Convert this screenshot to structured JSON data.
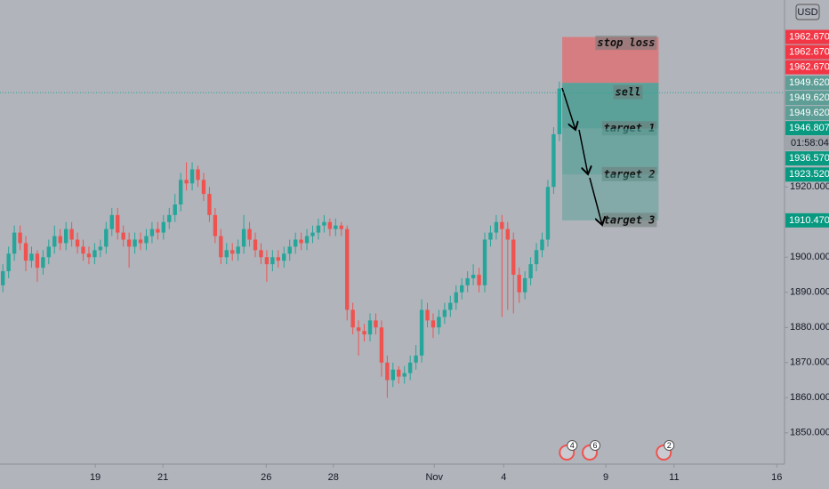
{
  "chart_data": {
    "type": "candlestick",
    "currency": "USD",
    "up_color": "#26a69a",
    "down_color": "#ef5350",
    "xlim": [
      -0.5,
      144
    ],
    "xticks": [
      {
        "value": 16.1,
        "label": "19"
      },
      {
        "value": 27.9,
        "label": "21"
      },
      {
        "value": 45.9,
        "label": "26"
      },
      {
        "value": 57.6,
        "label": "28"
      },
      {
        "value": 75.2,
        "label": "Nov"
      },
      {
        "value": 87.3,
        "label": "4"
      },
      {
        "value": 105.1,
        "label": "9"
      },
      {
        "value": 117,
        "label": "11"
      },
      {
        "value": 134.9,
        "label": "16"
      }
    ],
    "ylim": [
      1841.1,
      1973.2
    ],
    "yticks": [
      {
        "value": 1850,
        "label": "1850.000"
      },
      {
        "value": 1860,
        "label": "1860.000"
      },
      {
        "value": 1870,
        "label": "1870.000"
      },
      {
        "value": 1880,
        "label": "1880.000"
      },
      {
        "value": 1890,
        "label": "1890.000"
      },
      {
        "value": 1900,
        "label": "1900.000"
      },
      {
        "value": 1920,
        "label": "1920.000"
      }
    ],
    "ohlc": [
      [
        1892,
        1898,
        1890,
        1896
      ],
      [
        1896,
        1903,
        1894,
        1901
      ],
      [
        1901,
        1909,
        1899,
        1907
      ],
      [
        1907,
        1909,
        1902,
        1904
      ],
      [
        1904,
        1906,
        1896,
        1899
      ],
      [
        1899,
        1903,
        1897,
        1901
      ],
      [
        1901,
        1902,
        1893,
        1897
      ],
      [
        1897,
        1902,
        1895,
        1900
      ],
      [
        1900,
        1905,
        1898,
        1903
      ],
      [
        1903,
        1909,
        1901,
        1906
      ],
      [
        1906,
        1908,
        1902,
        1904
      ],
      [
        1904,
        1910,
        1902,
        1908
      ],
      [
        1908,
        1910,
        1903,
        1905
      ],
      [
        1905,
        1907,
        1901,
        1903
      ],
      [
        1903,
        1905,
        1899,
        1901
      ],
      [
        1901,
        1903,
        1898,
        1900
      ],
      [
        1900,
        1904,
        1898,
        1902
      ],
      [
        1902,
        1905,
        1900,
        1903
      ],
      [
        1903,
        1910,
        1901,
        1908
      ],
      [
        1908,
        1914,
        1906,
        1912
      ],
      [
        1912,
        1914,
        1905,
        1907
      ],
      [
        1907,
        1909,
        1903,
        1905
      ],
      [
        1905,
        1907,
        1897,
        1903
      ],
      [
        1903,
        1907,
        1901,
        1905
      ],
      [
        1905,
        1907,
        1902,
        1904
      ],
      [
        1904,
        1908,
        1902,
        1906
      ],
      [
        1906,
        1910,
        1904,
        1908
      ],
      [
        1908,
        1910,
        1905,
        1907
      ],
      [
        1907,
        1912,
        1905,
        1910
      ],
      [
        1910,
        1914,
        1908,
        1912
      ],
      [
        1912,
        1918,
        1910,
        1915
      ],
      [
        1915,
        1924,
        1913,
        1922
      ],
      [
        1922,
        1927,
        1919,
        1921
      ],
      [
        1921,
        1927,
        1919,
        1925
      ],
      [
        1925,
        1926,
        1920,
        1922
      ],
      [
        1922,
        1924,
        1916,
        1918
      ],
      [
        1918,
        1920,
        1910,
        1912
      ],
      [
        1912,
        1914,
        1904,
        1906
      ],
      [
        1906,
        1908,
        1898,
        1900
      ],
      [
        1900,
        1904,
        1898,
        1902
      ],
      [
        1902,
        1904,
        1899,
        1901
      ],
      [
        1901,
        1905,
        1899,
        1903
      ],
      [
        1903,
        1912,
        1901,
        1908
      ],
      [
        1908,
        1910,
        1903,
        1905
      ],
      [
        1905,
        1907,
        1900,
        1902
      ],
      [
        1902,
        1904,
        1898,
        1900
      ],
      [
        1900,
        1902,
        1893,
        1898
      ],
      [
        1898,
        1902,
        1896,
        1900
      ],
      [
        1900,
        1902,
        1897,
        1899
      ],
      [
        1899,
        1903,
        1897,
        1901
      ],
      [
        1901,
        1905,
        1899,
        1903
      ],
      [
        1903,
        1907,
        1901,
        1905
      ],
      [
        1905,
        1907,
        1902,
        1904
      ],
      [
        1904,
        1908,
        1902,
        1906
      ],
      [
        1906,
        1909,
        1904,
        1907
      ],
      [
        1907,
        1911,
        1905,
        1909
      ],
      [
        1909,
        1912,
        1907,
        1910
      ],
      [
        1910,
        1911,
        1906,
        1908
      ],
      [
        1908,
        1911,
        1906,
        1909
      ],
      [
        1909,
        1910,
        1906,
        1908
      ],
      [
        1908,
        1909,
        1882,
        1885
      ],
      [
        1885,
        1887,
        1878,
        1880
      ],
      [
        1880,
        1882,
        1872,
        1879
      ],
      [
        1879,
        1881,
        1876,
        1878
      ],
      [
        1878,
        1884,
        1876,
        1882
      ],
      [
        1882,
        1884,
        1878,
        1880
      ],
      [
        1880,
        1882,
        1866,
        1870
      ],
      [
        1870,
        1872,
        1860,
        1865
      ],
      [
        1865,
        1870,
        1863,
        1868
      ],
      [
        1868,
        1869,
        1864,
        1866
      ],
      [
        1866,
        1869,
        1864,
        1867
      ],
      [
        1867,
        1872,
        1865,
        1870
      ],
      [
        1870,
        1875,
        1868,
        1872
      ],
      [
        1872,
        1888,
        1870,
        1885
      ],
      [
        1885,
        1887,
        1880,
        1882
      ],
      [
        1882,
        1884,
        1877,
        1880
      ],
      [
        1880,
        1885,
        1878,
        1883
      ],
      [
        1883,
        1887,
        1881,
        1885
      ],
      [
        1885,
        1889,
        1883,
        1887
      ],
      [
        1887,
        1892,
        1885,
        1890
      ],
      [
        1890,
        1894,
        1888,
        1892
      ],
      [
        1892,
        1896,
        1890,
        1894
      ],
      [
        1894,
        1898,
        1892,
        1895
      ],
      [
        1895,
        1897,
        1890,
        1892
      ],
      [
        1892,
        1907,
        1890,
        1905
      ],
      [
        1905,
        1909,
        1903,
        1907
      ],
      [
        1907,
        1912,
        1905,
        1910
      ],
      [
        1910,
        1912,
        1883,
        1908
      ],
      [
        1908,
        1910,
        1885,
        1905
      ],
      [
        1905,
        1907,
        1884,
        1895
      ],
      [
        1895,
        1897,
        1887,
        1890
      ],
      [
        1890,
        1896,
        1888,
        1894
      ],
      [
        1894,
        1900,
        1892,
        1898
      ],
      [
        1898,
        1904,
        1896,
        1902
      ],
      [
        1902,
        1907,
        1900,
        1905
      ],
      [
        1905,
        1922,
        1903,
        1920
      ],
      [
        1920,
        1937,
        1918,
        1935
      ],
      [
        1935,
        1950,
        1933,
        1948
      ]
    ],
    "position": {
      "start": 97.5,
      "end": 114.3,
      "stop": {
        "value": 1962.67,
        "text": "stop loss"
      },
      "entry": {
        "value": 1949.62,
        "text": "sell"
      },
      "targets": [
        {
          "value": 1936.57,
          "text": "target 1"
        },
        {
          "value": 1923.52,
          "text": "target 2"
        },
        {
          "value": 1910.47,
          "text": "target 3"
        }
      ]
    },
    "current_price": {
      "value": 1946.807,
      "label": "1946.807",
      "countdown": "01:58:04"
    },
    "price_labels": [
      {
        "value": 1962.67,
        "label": "1962.670",
        "color": "#f23645"
      },
      {
        "value": 1962.67,
        "label": "1962.670",
        "color": "#f23645"
      },
      {
        "value": 1962.67,
        "label": "1962.670",
        "color": "#f23645"
      },
      {
        "value": 1949.62,
        "label": "1949.620",
        "color": "#5e9e96"
      },
      {
        "value": 1949.62,
        "label": "1949.620",
        "color": "#5e9e96"
      },
      {
        "value": 1949.62,
        "label": "1949.620",
        "color": "#5e9e96"
      },
      {
        "value": 1936.57,
        "label": "1936.570",
        "color": "#089981"
      },
      {
        "value": 1923.52,
        "label": "1923.520",
        "color": "#089981"
      },
      {
        "value": 1910.47,
        "label": "1910.470",
        "color": "#089981"
      }
    ],
    "events": [
      {
        "x": 98.3,
        "count": 4
      },
      {
        "x": 102.3,
        "count": 6
      },
      {
        "x": 115.2,
        "count": 2
      }
    ]
  }
}
